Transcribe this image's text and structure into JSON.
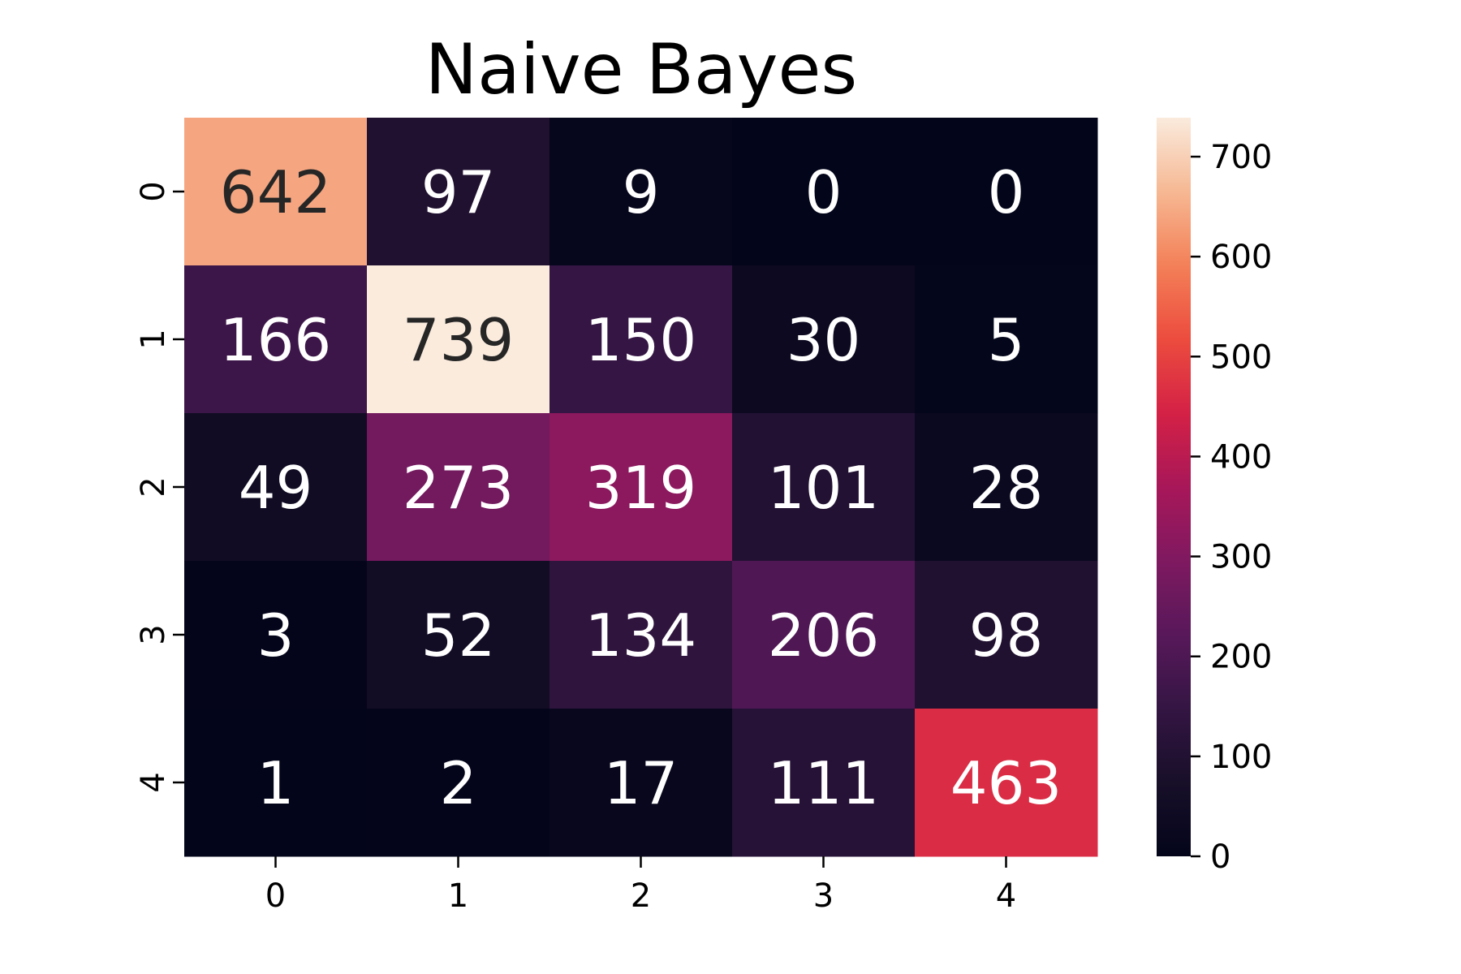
{
  "chart_data": {
    "type": "heatmap",
    "title": "Naive Bayes",
    "xlabel": "",
    "ylabel": "",
    "x_categories": [
      "0",
      "1",
      "2",
      "3",
      "4"
    ],
    "y_categories": [
      "0",
      "1",
      "2",
      "3",
      "4"
    ],
    "values": [
      [
        642,
        97,
        9,
        0,
        0
      ],
      [
        166,
        739,
        150,
        30,
        5
      ],
      [
        49,
        273,
        319,
        101,
        28
      ],
      [
        3,
        52,
        134,
        206,
        98
      ],
      [
        1,
        2,
        17,
        111,
        463
      ]
    ],
    "colorbar": {
      "min": 0,
      "max": 739,
      "ticks": [
        0,
        100,
        200,
        300,
        400,
        500,
        600,
        700
      ],
      "colormap": "rocket"
    },
    "grid": false,
    "legend": "colorbar-right"
  }
}
